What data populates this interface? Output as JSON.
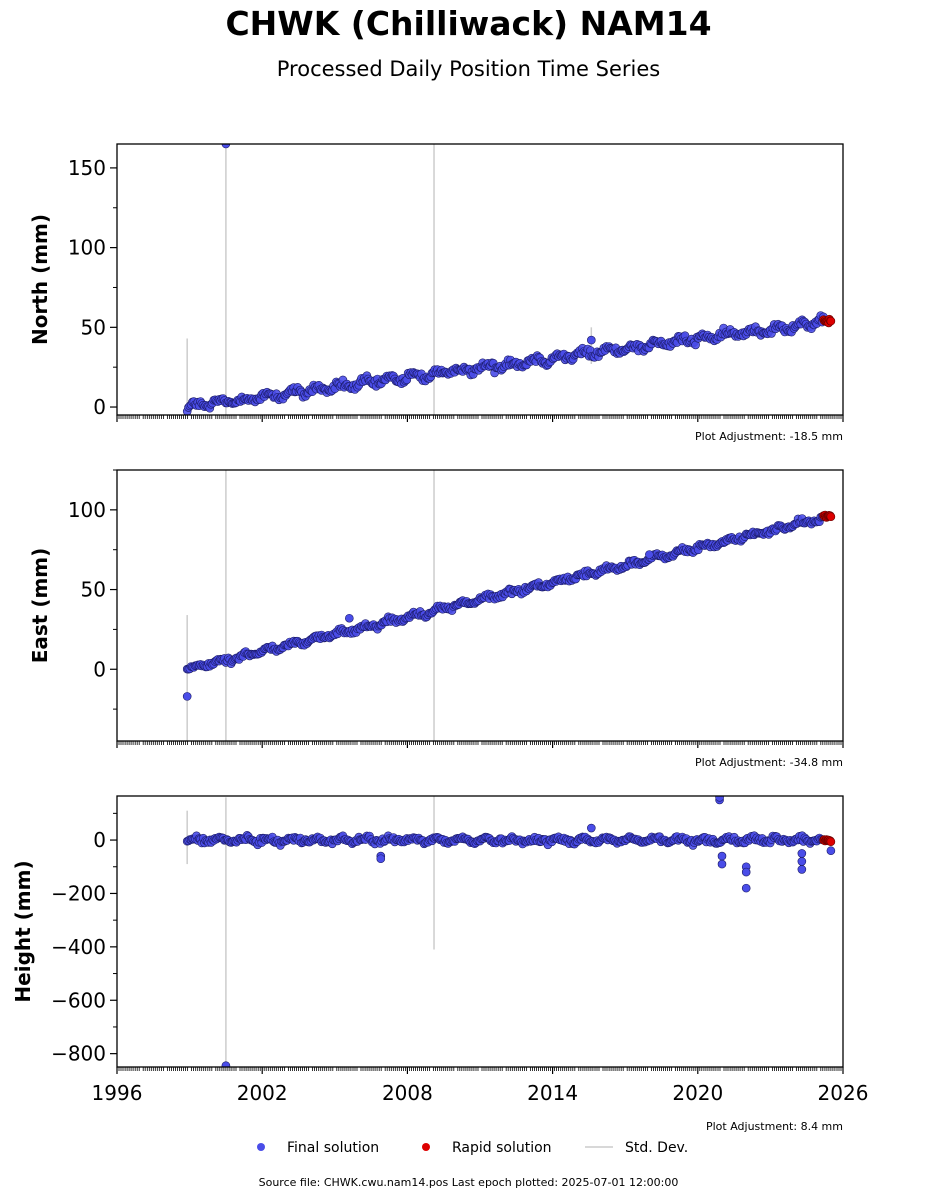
{
  "title": "CHWK (Chilliwack) NAM14",
  "subtitle": "Processed Daily Position Time Series",
  "footer": "Source file: CHWK.cwu.nam14.pos  Last epoch plotted: 2025-07-01 12:00:00",
  "chart_data": {
    "type": "scatter",
    "x_range": [
      1996,
      2026
    ],
    "x_ticks": [
      1996,
      2002,
      2008,
      2014,
      2020,
      2026
    ],
    "data_start": 1998.9,
    "data_end": 2025.5,
    "rapid_start": 2025.2,
    "colors": {
      "final": "#4a4de8",
      "final_edge": "#1a1a66",
      "rapid": "#dd0000",
      "std": "#cccccc"
    },
    "legend": {
      "placement": "bottom",
      "items": [
        {
          "label": "Final solution",
          "kind": "final"
        },
        {
          "label": "Rapid solution",
          "kind": "rapid"
        },
        {
          "label": "Std. Dev.",
          "kind": "std"
        }
      ]
    },
    "panels": [
      {
        "ylabel": "North (mm)",
        "ylim": [
          -5,
          165
        ],
        "yticks": [
          0,
          50,
          100,
          150
        ],
        "ytick_labels": [
          "0",
          "50",
          "100",
          "150"
        ],
        "trend": [
          0.0,
          54.0
        ],
        "noise": 3,
        "adjustment": "Plot Adjustment: -18.5 mm",
        "outliers": [
          [
            2000.5,
            165
          ],
          [
            2015.6,
            42
          ]
        ],
        "std_lines": [
          [
            1998.9,
            -2,
            43
          ],
          [
            2000.5,
            -5,
            165
          ],
          [
            2009.1,
            -5,
            165
          ],
          [
            2015.6,
            27,
            50
          ]
        ]
      },
      {
        "ylabel": "East (mm)",
        "ylim": [
          -45,
          125
        ],
        "yticks": [
          0,
          50,
          100
        ],
        "ytick_labels": [
          "0",
          "50",
          "100"
        ],
        "trend": [
          0.0,
          96.0
        ],
        "noise": 2,
        "adjustment": "Plot Adjustment: -34.8 mm",
        "outliers": [
          [
            1998.9,
            -17
          ],
          [
            2005.6,
            32
          ],
          [
            2018.0,
            72
          ]
        ],
        "std_lines": [
          [
            1998.9,
            -45,
            34
          ],
          [
            2000.5,
            -45,
            125
          ],
          [
            2009.1,
            -45,
            125
          ]
        ]
      },
      {
        "ylabel": "Height (mm)",
        "ylim": [
          -850,
          165
        ],
        "yticks": [
          0,
          -200,
          -400,
          -600,
          -800
        ],
        "ytick_labels": [
          "0",
          "−200",
          "−400",
          "−600",
          "−800"
        ],
        "trend": [
          0.0,
          0.0
        ],
        "noise": 12,
        "adjustment": "Plot Adjustment: 8.4 mm",
        "outliers": [
          [
            2000.5,
            -845
          ],
          [
            2006.9,
            -60
          ],
          [
            2006.9,
            -70
          ],
          [
            2015.6,
            45
          ],
          [
            2020.9,
            150
          ],
          [
            2020.9,
            160
          ],
          [
            2021.0,
            -60
          ],
          [
            2021.0,
            -90
          ],
          [
            2022.0,
            -100
          ],
          [
            2022.0,
            -120
          ],
          [
            2022.0,
            -180
          ],
          [
            2024.3,
            -50
          ],
          [
            2024.3,
            -80
          ],
          [
            2024.3,
            -110
          ],
          [
            2025.5,
            -40
          ]
        ],
        "std_lines": [
          [
            1998.9,
            -90,
            110
          ],
          [
            2000.5,
            -850,
            160
          ],
          [
            2009.1,
            -410,
            165
          ]
        ]
      }
    ]
  }
}
